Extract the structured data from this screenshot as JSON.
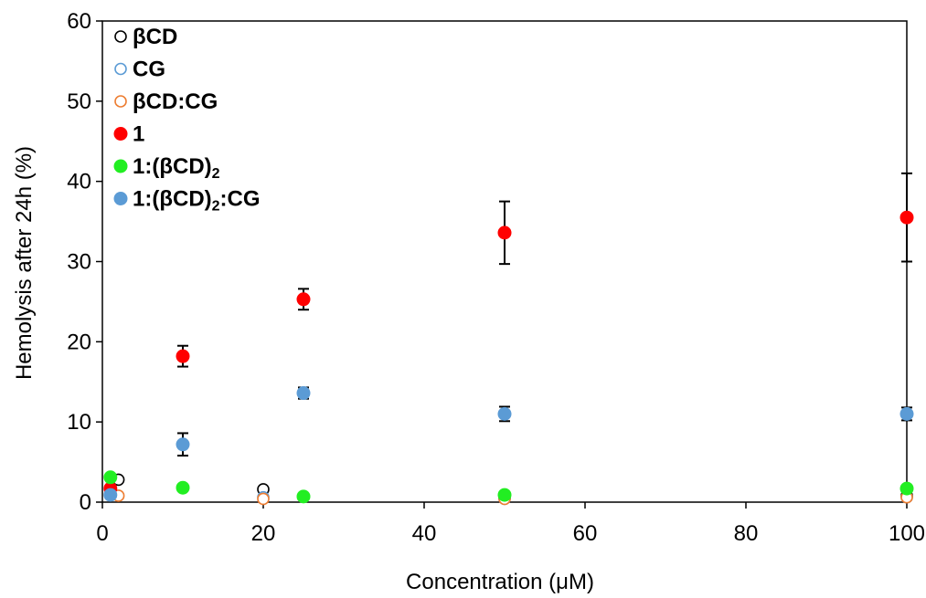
{
  "chart_data": {
    "type": "scatter",
    "xlabel": "Concentration (μM)",
    "ylabel": "Hemolysis after 24h (%)",
    "xlim": [
      0,
      100
    ],
    "ylim": [
      0,
      60
    ],
    "xticks": [
      "0",
      "20",
      "40",
      "60",
      "80",
      "100"
    ],
    "yticks": [
      "0",
      "10",
      "20",
      "30",
      "40",
      "50",
      "60"
    ],
    "grid": false,
    "legend_position": "top-left",
    "series": [
      {
        "name": "βCD",
        "name_parts": [
          {
            "t": "βCD",
            "sub": false
          }
        ],
        "marker": "open",
        "color": "#000000",
        "points": [
          {
            "x": 2,
            "y": 2.8
          },
          {
            "x": 20,
            "y": 1.6
          },
          {
            "x": 50,
            "y": 0.5
          },
          {
            "x": 100,
            "y": 0.8
          }
        ]
      },
      {
        "name": "CG",
        "name_parts": [
          {
            "t": "CG",
            "sub": false
          }
        ],
        "marker": "open",
        "color": "#5b9bd5",
        "points": [
          {
            "x": 1,
            "y": 1.2
          },
          {
            "x": 20,
            "y": 0.6
          },
          {
            "x": 50,
            "y": 0.4
          },
          {
            "x": 100,
            "y": 0.6
          }
        ]
      },
      {
        "name": "βCD:CG",
        "name_parts": [
          {
            "t": "βCD:CG",
            "sub": false
          }
        ],
        "marker": "open",
        "color": "#ed7d31",
        "points": [
          {
            "x": 2,
            "y": 0.8
          },
          {
            "x": 20,
            "y": 0.4
          },
          {
            "x": 50,
            "y": 0.4
          },
          {
            "x": 100,
            "y": 0.6
          }
        ]
      },
      {
        "name": "1",
        "name_parts": [
          {
            "t": "1",
            "sub": false
          }
        ],
        "marker": "filled",
        "color": "#ff0000",
        "points": [
          {
            "x": 1,
            "y": 1.7
          },
          {
            "x": 10,
            "y": 18.2,
            "err": 1.3
          },
          {
            "x": 25,
            "y": 25.3,
            "err": 1.3
          },
          {
            "x": 50,
            "y": 33.6,
            "err": 3.9
          },
          {
            "x": 100,
            "y": 35.5,
            "err": 5.5
          }
        ]
      },
      {
        "name": "1:(βCD)2",
        "name_parts": [
          {
            "t": "1:(βCD)",
            "sub": false
          },
          {
            "t": "2",
            "sub": true
          }
        ],
        "marker": "filled",
        "color": "#22ee22",
        "points": [
          {
            "x": 1,
            "y": 3.1
          },
          {
            "x": 10,
            "y": 1.8
          },
          {
            "x": 25,
            "y": 0.7
          },
          {
            "x": 50,
            "y": 0.9
          },
          {
            "x": 100,
            "y": 1.7
          }
        ]
      },
      {
        "name": "1:(βCD)2:CG",
        "name_parts": [
          {
            "t": "1:(βCD)",
            "sub": false
          },
          {
            "t": "2",
            "sub": true
          },
          {
            "t": ":CG",
            "sub": false
          }
        ],
        "marker": "filled",
        "color": "#5b9bd5",
        "points": [
          {
            "x": 1,
            "y": 0.9
          },
          {
            "x": 10,
            "y": 7.2,
            "err": 1.4
          },
          {
            "x": 25,
            "y": 13.6,
            "err": 0.7
          },
          {
            "x": 50,
            "y": 11.0,
            "err": 0.9
          },
          {
            "x": 100,
            "y": 11.0,
            "err": 0.8
          }
        ]
      }
    ]
  }
}
